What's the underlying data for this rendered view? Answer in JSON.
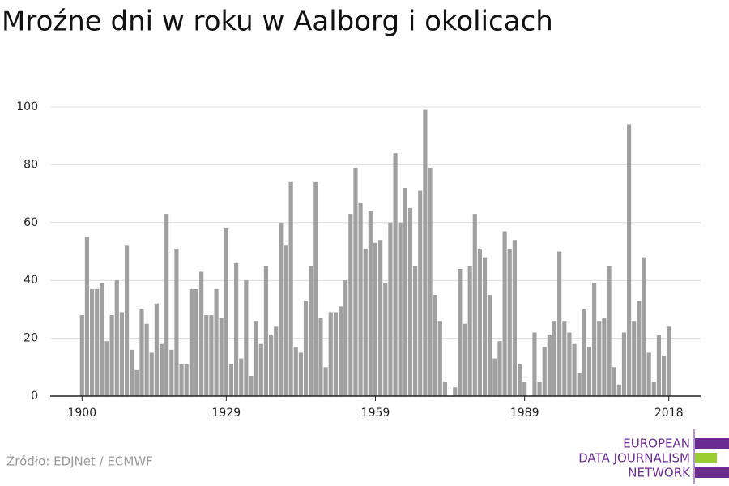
{
  "chart_data": {
    "type": "bar",
    "title": "Mroźne dni w roku w Aalborg i okolicach",
    "source": "Źródło: EDJNet / ECMWF",
    "logo": [
      "EUROPEAN",
      "DATA JOURNALISM",
      "NETWORK"
    ],
    "color": "#a0a0a0",
    "grid": true,
    "x": [
      1900,
      1901,
      1902,
      1903,
      1904,
      1905,
      1906,
      1907,
      1908,
      1909,
      1910,
      1911,
      1912,
      1913,
      1914,
      1915,
      1916,
      1917,
      1918,
      1919,
      1920,
      1921,
      1922,
      1923,
      1924,
      1925,
      1926,
      1927,
      1928,
      1929,
      1930,
      1931,
      1932,
      1933,
      1934,
      1935,
      1936,
      1937,
      1938,
      1939,
      1940,
      1941,
      1942,
      1943,
      1944,
      1945,
      1946,
      1947,
      1948,
      1949,
      1950,
      1951,
      1952,
      1953,
      1954,
      1955,
      1956,
      1957,
      1958,
      1959,
      1960,
      1961,
      1962,
      1963,
      1964,
      1965,
      1966,
      1967,
      1968,
      1969,
      1970,
      1971,
      1972,
      1973,
      1974,
      1975,
      1976,
      1977,
      1978,
      1979,
      1980,
      1981,
      1982,
      1983,
      1984,
      1985,
      1986,
      1987,
      1988,
      1989,
      1990,
      1991,
      1992,
      1993,
      1994,
      1995,
      1996,
      1997,
      1998,
      1999,
      2000,
      2001,
      2002,
      2003,
      2004,
      2005,
      2006,
      2007,
      2008,
      2009,
      2010,
      2011,
      2012,
      2013,
      2014,
      2015,
      2016,
      2017,
      2018
    ],
    "values": [
      28,
      55,
      37,
      37,
      39,
      19,
      28,
      40,
      29,
      52,
      16,
      9,
      30,
      25,
      15,
      32,
      18,
      63,
      16,
      51,
      11,
      11,
      37,
      37,
      43,
      28,
      28,
      37,
      27,
      58,
      11,
      46,
      13,
      40,
      7,
      26,
      18,
      45,
      21,
      24,
      60,
      52,
      74,
      17,
      15,
      33,
      45,
      74,
      27,
      10,
      29,
      29,
      31,
      40,
      63,
      79,
      67,
      51,
      64,
      53,
      54,
      39,
      60,
      84,
      60,
      72,
      65,
      45,
      71,
      99,
      79,
      35,
      26,
      5,
      0,
      3,
      44,
      25,
      45,
      63,
      51,
      48,
      35,
      13,
      19,
      57,
      51,
      54,
      11,
      5,
      0,
      22,
      5,
      17,
      21,
      26,
      50,
      26,
      22,
      18,
      8,
      30,
      17,
      39,
      26,
      27,
      45,
      10,
      4,
      22,
      94,
      26,
      33,
      48,
      15,
      5,
      21,
      14,
      24
    ],
    "xlim": [
      1893.6,
      2024.4
    ],
    "xticks": [
      1900,
      1929,
      1959,
      1989,
      2018
    ],
    "ylim": [
      0,
      100
    ],
    "yticks": [
      0,
      20,
      40,
      60,
      80,
      100
    ]
  }
}
